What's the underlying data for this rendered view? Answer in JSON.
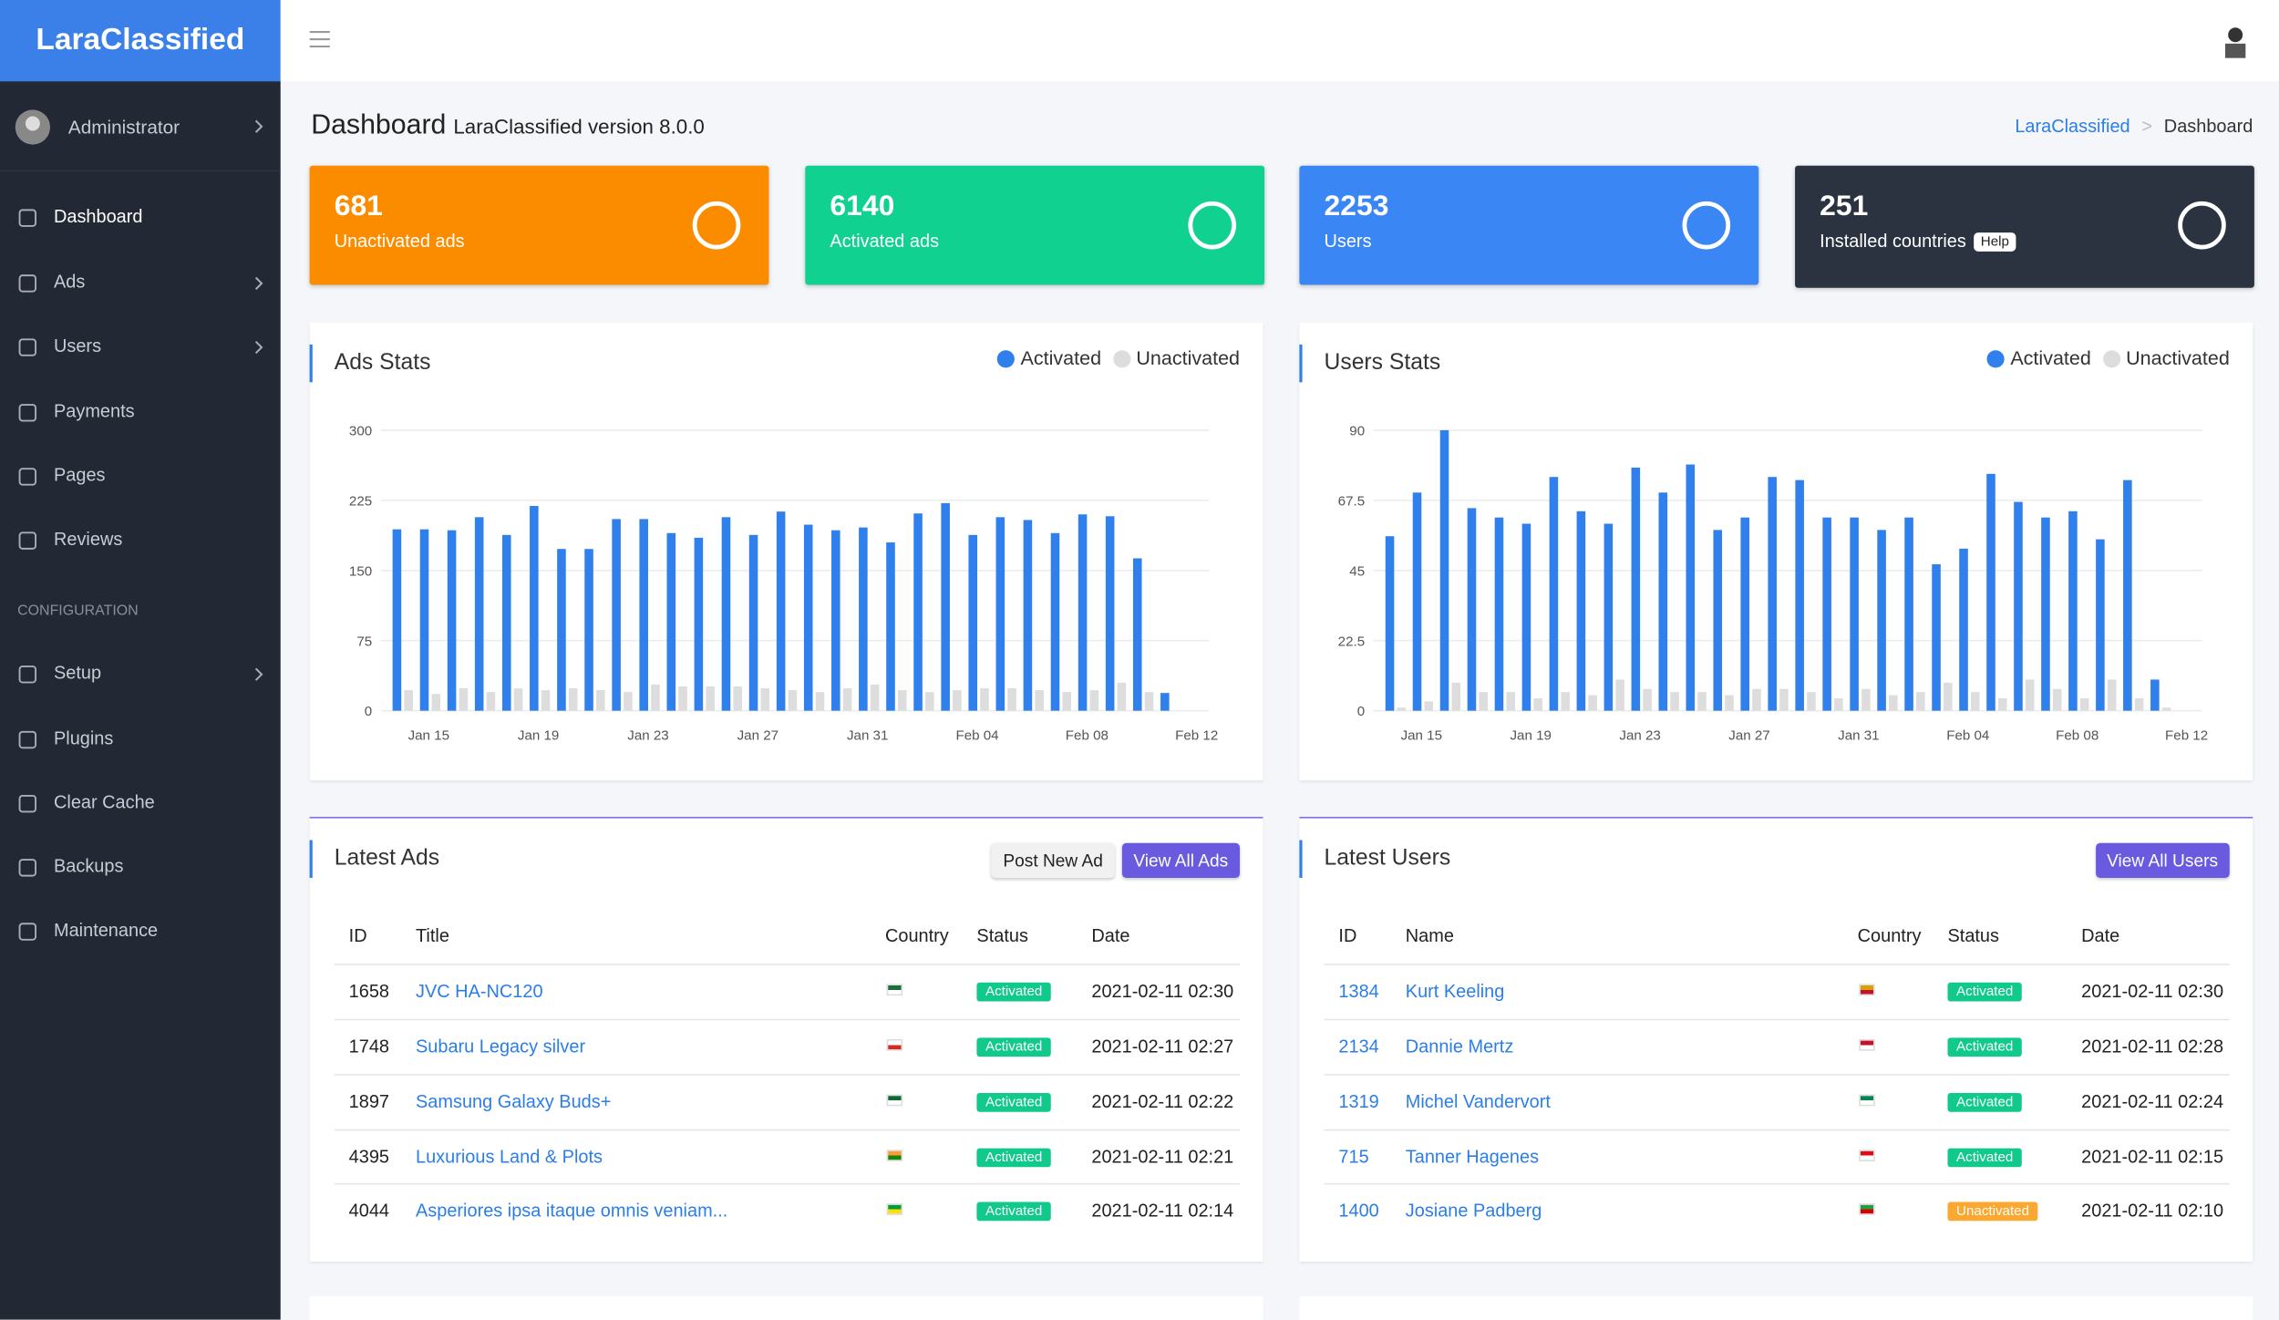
{
  "sidebar": {
    "brand": "LaraClassified",
    "user": "Administrator",
    "menu": [
      "Dashboard",
      "Ads",
      "Users",
      "Payments",
      "Pages",
      "Reviews"
    ],
    "section": "CONFIGURATION",
    "config_menu": [
      "Setup",
      "Plugins",
      "Clear Cache",
      "Backups",
      "Maintenance"
    ]
  },
  "header": {
    "title": "Dashboard",
    "subtitle": "LaraClassified version 8.0.0",
    "breadcrumb": [
      "LaraClassified",
      "Dashboard"
    ]
  },
  "cards": [
    {
      "value": 681,
      "label": "Unactivated ads",
      "color": "#fb8c00"
    },
    {
      "value": 6140,
      "label": "Activated ads",
      "color": "#10d18f"
    },
    {
      "value": 2253,
      "label": "Users",
      "color": "#3b86f5"
    },
    {
      "value": 251,
      "label": "Installed countries",
      "color": "#2b3340",
      "badge": "Help"
    }
  ],
  "chart_data": [
    {
      "type": "bar",
      "title": "Ads Stats",
      "categories": [
        null,
        "Jan 15",
        null,
        null,
        null,
        "Jan 19",
        null,
        null,
        null,
        "Jan 23",
        null,
        null,
        null,
        "Jan 27",
        null,
        null,
        null,
        "Jan 31",
        null,
        null,
        null,
        "Feb 04",
        null,
        null,
        null,
        "Feb 08",
        null,
        null,
        null,
        "Feb 12"
      ],
      "series": [
        {
          "name": "Activated",
          "color": "#2f80ed",
          "values": [
            194,
            194,
            193,
            207,
            188,
            219,
            173,
            173,
            205,
            205,
            190,
            185,
            207,
            188,
            213,
            199,
            193,
            196,
            180,
            211,
            222,
            188,
            207,
            204,
            190,
            210,
            208,
            163,
            19,
            null
          ]
        },
        {
          "name": "Unactivated",
          "color": "#dddddd",
          "values": [
            22,
            18,
            24,
            20,
            24,
            22,
            24,
            22,
            20,
            28,
            26,
            26,
            26,
            24,
            22,
            20,
            24,
            28,
            22,
            20,
            22,
            24,
            24,
            22,
            20,
            22,
            30,
            20,
            0,
            null
          ]
        }
      ],
      "ylim": [
        0,
        300
      ],
      "yticks": [
        0,
        75,
        150,
        225,
        300
      ],
      "grid": true
    },
    {
      "type": "bar",
      "title": "Users Stats",
      "categories": [
        null,
        "Jan 15",
        null,
        null,
        null,
        "Jan 19",
        null,
        null,
        null,
        "Jan 23",
        null,
        null,
        null,
        "Jan 27",
        null,
        null,
        null,
        "Jan 31",
        null,
        null,
        null,
        "Feb 04",
        null,
        null,
        null,
        "Feb 08",
        null,
        null,
        null,
        "Feb 12"
      ],
      "series": [
        {
          "name": "Activated",
          "color": "#2f80ed",
          "values": [
            56,
            70,
            90,
            65,
            62,
            60,
            75,
            64,
            60,
            78,
            70,
            79,
            58,
            62,
            75,
            74,
            62,
            62,
            58,
            62,
            47,
            52,
            76,
            67,
            62,
            64,
            55,
            74,
            10,
            null
          ]
        },
        {
          "name": "Unactivated",
          "color": "#dddddd",
          "values": [
            1,
            3,
            9,
            6,
            6,
            4,
            6,
            5,
            10,
            7,
            6,
            6,
            5,
            7,
            7,
            6,
            4,
            7,
            5,
            6,
            9,
            6,
            4,
            10,
            7,
            4,
            10,
            4,
            1,
            null
          ]
        }
      ],
      "ylim": [
        0,
        90
      ],
      "yticks": [
        0,
        22.5,
        45,
        67.5,
        90
      ],
      "grid": true
    }
  ],
  "latest_ads": {
    "title": "Latest Ads",
    "buttons": [
      "Post New Ad",
      "View All Ads"
    ],
    "columns": [
      "ID",
      "Title",
      "Country",
      "Status",
      "Date"
    ],
    "rows": [
      [
        1658,
        "JVC HA-NC120",
        "Activated",
        "2021-02-11 02:30"
      ],
      [
        1748,
        "Subaru Legacy silver",
        "Activated",
        "2021-02-11 02:27"
      ],
      [
        1897,
        "Samsung Galaxy Buds+",
        "Activated",
        "2021-02-11 02:22"
      ],
      [
        4395,
        "Luxurious Land & Plots",
        "Activated",
        "2021-02-11 02:21"
      ],
      [
        4044,
        "Asperiores ipsa itaque omnis veniam...",
        "Activated",
        "2021-02-11 02:14"
      ]
    ]
  },
  "latest_users": {
    "title": "Latest Users",
    "buttons": [
      "View All Users"
    ],
    "columns": [
      "ID",
      "Name",
      "Country",
      "Status",
      "Date"
    ],
    "rows": [
      [
        1384,
        "Kurt Keeling",
        "Activated",
        "2021-02-11 02:30"
      ],
      [
        2134,
        "Dannie Mertz",
        "Activated",
        "2021-02-11 02:28"
      ],
      [
        1319,
        "Michel Vandervort",
        "Activated",
        "2021-02-11 02:24"
      ],
      [
        715,
        "Tanner Hagenes",
        "Activated",
        "2021-02-11 02:15"
      ],
      [
        1400,
        "Josiane Padberg",
        "Unactivated",
        "2021-02-11 02:10"
      ]
    ]
  }
}
